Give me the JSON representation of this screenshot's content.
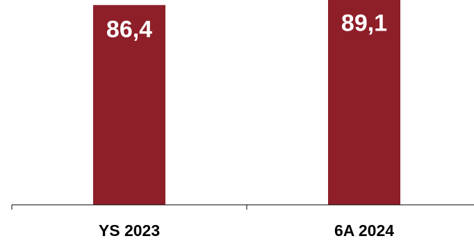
{
  "chart_data": {
    "type": "bar",
    "categories": [
      "YS 2023",
      "6A 2024"
    ],
    "values": [
      86.4,
      89.1
    ],
    "value_labels": [
      "86,4",
      "89,1"
    ],
    "bar_color": "#8e1f29",
    "label_color": "#ffffff",
    "grid": false,
    "legend": "none"
  }
}
